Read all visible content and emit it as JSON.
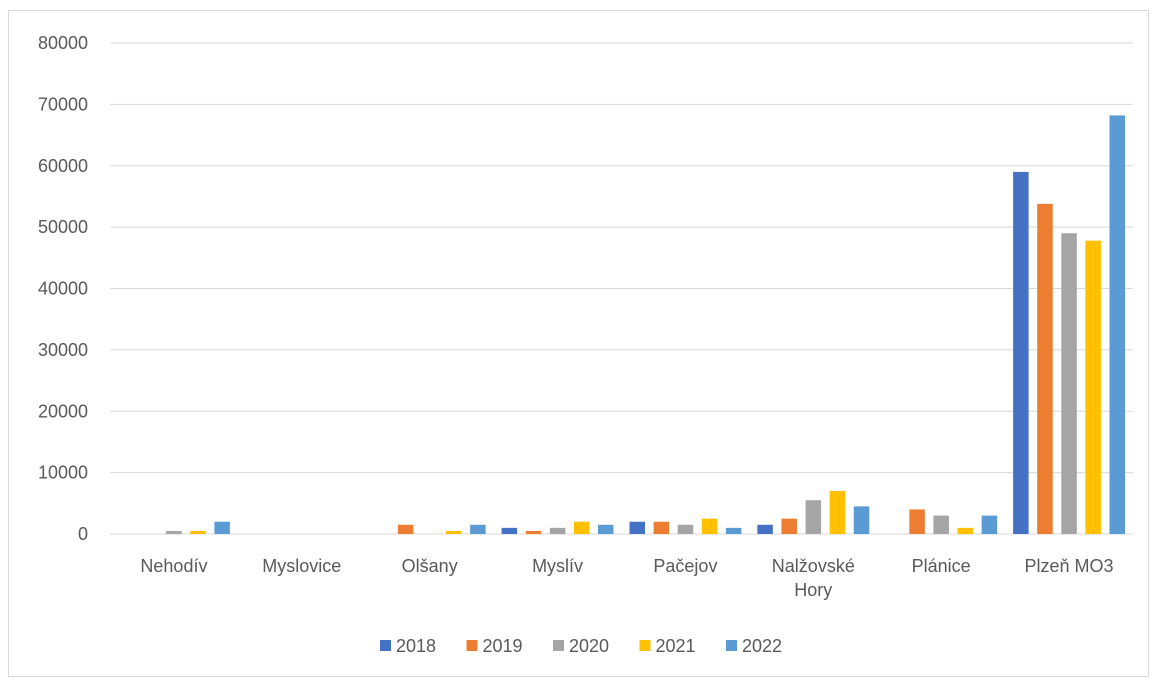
{
  "chart_data": {
    "type": "bar",
    "title": "",
    "xlabel": "",
    "ylabel": "",
    "ylim": [
      0,
      80000
    ],
    "yticks": [
      0,
      10000,
      20000,
      30000,
      40000,
      50000,
      60000,
      70000,
      80000
    ],
    "grid": true,
    "legend_position": "bottom",
    "categories": [
      [
        "Nehodív"
      ],
      [
        "Myslovice"
      ],
      [
        "Olšany"
      ],
      [
        "Myslív"
      ],
      [
        "Pačejov"
      ],
      [
        "Nalžovské",
        "Hory"
      ],
      [
        "Plánice"
      ],
      [
        "Plzeň MO3"
      ]
    ],
    "series": [
      {
        "name": "2018",
        "color": "#4472C4",
        "values": [
          0,
          0,
          0,
          1000,
          2000,
          1500,
          0,
          59000
        ]
      },
      {
        "name": "2019",
        "color": "#ED7D31",
        "values": [
          0,
          0,
          1500,
          500,
          2000,
          2500,
          4000,
          53800
        ]
      },
      {
        "name": "2020",
        "color": "#A5A5A5",
        "values": [
          500,
          0,
          0,
          1000,
          1500,
          5500,
          3000,
          49000
        ]
      },
      {
        "name": "2021",
        "color": "#FFC000",
        "values": [
          500,
          0,
          500,
          2000,
          2500,
          7000,
          1000,
          47800
        ]
      },
      {
        "name": "2022",
        "color": "#5B9BD5",
        "values": [
          2000,
          0,
          1500,
          1500,
          1000,
          4500,
          3000,
          68200
        ]
      }
    ]
  }
}
